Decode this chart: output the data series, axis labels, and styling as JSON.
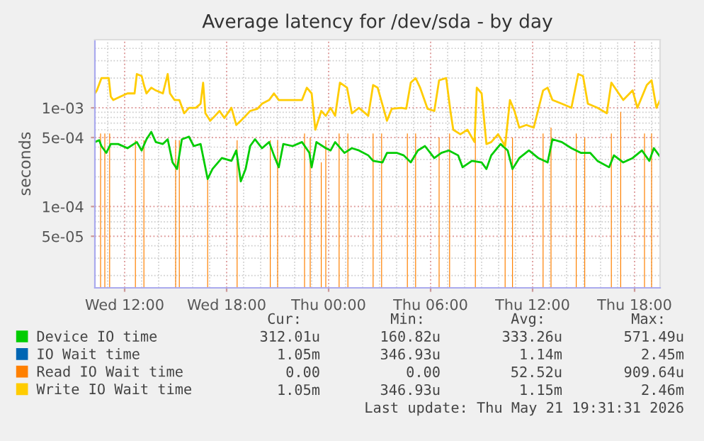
{
  "chart_data": {
    "type": "line",
    "title": "Average latency for /dev/sda - by day",
    "ylabel": "seconds",
    "xlim": [
      "2026-05-20T10:15",
      "2026-05-21T19:30"
    ],
    "xticks": [
      {
        "value": "2026-05-20T12:00",
        "label": "Wed 12:00"
      },
      {
        "value": "2026-05-20T18:00",
        "label": "Wed 18:00"
      },
      {
        "value": "2026-05-21T00:00",
        "label": "Thu 00:00"
      },
      {
        "value": "2026-05-21T06:00",
        "label": "Thu 06:00"
      },
      {
        "value": "2026-05-21T12:00",
        "label": "Thu 12:00"
      },
      {
        "value": "2026-05-21T18:00",
        "label": "Thu 18:00"
      }
    ],
    "ylim": [
      1.5e-05,
      0.0049
    ],
    "yticks": [
      {
        "value": 5e-05,
        "label": "5e-05"
      },
      {
        "value": 0.0001,
        "label": "1e-04"
      },
      {
        "value": 0.0005,
        "label": "5e-04"
      },
      {
        "value": 0.001,
        "label": "1e-03"
      }
    ],
    "log": "y",
    "grid": true,
    "legend": "bottom",
    "marker": "none",
    "line_style": "solid",
    "series": [
      {
        "name": "Device IO time",
        "color": "#00cc00",
        "x": [
          "2026-05-20T10:15",
          "2026-05-20T10:30",
          "2026-05-20T10:38",
          "2026-05-20T10:55",
          "2026-05-20T11:11",
          "2026-05-20T11:37",
          "2026-05-20T12:10",
          "2026-05-20T12:43",
          "2026-05-20T13:00",
          "2026-05-20T13:17",
          "2026-05-20T13:34",
          "2026-05-20T13:50",
          "2026-05-20T14:15",
          "2026-05-20T14:32",
          "2026-05-20T14:49",
          "2026-05-20T15:05",
          "2026-05-20T15:22",
          "2026-05-20T15:47",
          "2026-05-20T16:04",
          "2026-05-20T16:28",
          "2026-05-20T16:53",
          "2026-05-20T17:10",
          "2026-05-20T17:43",
          "2026-05-20T18:17",
          "2026-05-20T18:34",
          "2026-05-20T18:50",
          "2026-05-20T19:07",
          "2026-05-20T19:23",
          "2026-05-20T19:40",
          "2026-05-20T20:05",
          "2026-05-20T20:30",
          "2026-05-20T20:47",
          "2026-05-20T21:04",
          "2026-05-20T21:20",
          "2026-05-20T21:53",
          "2026-05-20T22:26",
          "2026-05-20T22:52",
          "2026-05-20T23:00",
          "2026-05-20T23:17",
          "2026-05-20T23:50",
          "2026-05-21T00:07",
          "2026-05-21T00:23",
          "2026-05-21T00:56",
          "2026-05-21T01:22",
          "2026-05-21T01:47",
          "2026-05-21T02:20",
          "2026-05-21T02:37",
          "2026-05-21T03:10",
          "2026-05-21T03:26",
          "2026-05-21T04:00",
          "2026-05-21T04:25",
          "2026-05-21T04:50",
          "2026-05-21T05:15",
          "2026-05-21T05:40",
          "2026-05-21T06:13",
          "2026-05-21T06:38",
          "2026-05-21T07:04",
          "2026-05-21T07:37",
          "2026-05-21T07:53",
          "2026-05-21T08:26",
          "2026-05-21T09:00",
          "2026-05-21T09:17",
          "2026-05-21T09:34",
          "2026-05-21T10:07",
          "2026-05-21T10:32",
          "2026-05-21T10:49",
          "2026-05-21T11:13",
          "2026-05-21T11:47",
          "2026-05-21T12:20",
          "2026-05-21T12:53",
          "2026-05-21T13:10",
          "2026-05-21T13:43",
          "2026-05-21T14:17",
          "2026-05-21T14:50",
          "2026-05-21T15:23",
          "2026-05-21T15:49",
          "2026-05-21T16:30",
          "2026-05-21T16:47",
          "2026-05-21T17:20",
          "2026-05-21T17:53",
          "2026-05-21T18:26",
          "2026-05-21T18:52",
          "2026-05-21T19:08",
          "2026-05-21T19:30"
        ],
        "values": [
          0.00045,
          0.00047,
          0.00041,
          0.00035,
          0.00043,
          0.00043,
          0.00039,
          0.00045,
          0.00037,
          0.00048,
          0.00057,
          0.00045,
          0.00043,
          0.00048,
          0.00028,
          0.00024,
          0.00048,
          0.00051,
          0.00041,
          0.00043,
          0.00019,
          0.00024,
          0.00031,
          0.00029,
          0.00037,
          0.00018,
          0.00024,
          0.00041,
          0.00048,
          0.00039,
          0.00045,
          0.00033,
          0.00025,
          0.00043,
          0.00041,
          0.00045,
          0.00035,
          0.00025,
          0.00045,
          0.00039,
          0.00037,
          0.00045,
          0.00035,
          0.00039,
          0.00037,
          0.00033,
          0.00029,
          0.00028,
          0.00035,
          0.00035,
          0.00033,
          0.00028,
          0.00037,
          0.00041,
          0.00031,
          0.00035,
          0.00037,
          0.00033,
          0.00025,
          0.00029,
          0.00028,
          0.00024,
          0.00033,
          0.00043,
          0.00037,
          0.00024,
          0.00031,
          0.00037,
          0.00031,
          0.00028,
          0.00048,
          0.00045,
          0.00039,
          0.00035,
          0.00035,
          0.00029,
          0.00025,
          0.00033,
          0.00028,
          0.00031,
          0.00037,
          0.00029,
          0.00039,
          0.00032
        ]
      },
      {
        "name": "IO Wait time",
        "color": "#0066b3"
      },
      {
        "name": "Read IO Wait time",
        "color": "#ff8000",
        "type": "bar",
        "x": [
          "2026-05-20T10:35",
          "2026-05-20T10:50",
          "2026-05-20T11:07",
          "2026-05-20T12:38",
          "2026-05-20T13:08",
          "2026-05-20T15:00",
          "2026-05-20T15:13",
          "2026-05-20T16:53",
          "2026-05-20T18:37",
          "2026-05-20T20:34",
          "2026-05-20T21:00",
          "2026-05-20T22:35",
          "2026-05-20T22:55",
          "2026-05-20T23:34",
          "2026-05-20T23:50",
          "2026-05-21T00:37",
          "2026-05-21T01:08",
          "2026-05-21T02:37",
          "2026-05-21T03:07",
          "2026-05-21T04:38",
          "2026-05-21T05:07",
          "2026-05-21T06:30",
          "2026-05-21T07:07",
          "2026-05-21T08:38",
          "2026-05-21T10:23",
          "2026-05-21T10:49",
          "2026-05-21T12:37",
          "2026-05-21T13:05",
          "2026-05-21T14:34",
          "2026-05-21T15:04",
          "2026-05-21T16:38",
          "2026-05-21T17:11",
          "2026-05-21T18:35",
          "2026-05-21T19:00"
        ],
        "values": [
          0.00055,
          0.00055,
          0.00055,
          0.00047,
          0.00047,
          0.00047,
          0.00047,
          0.0002,
          0.00047,
          0.00047,
          0.00047,
          0.00055,
          0.0005,
          0.00028,
          0.00047,
          0.00055,
          0.00055,
          0.00055,
          0.00055,
          0.00055,
          0.00055,
          0.0005,
          0.00055,
          0.0005,
          0.00047,
          0.0005,
          0.00055,
          0.00063,
          0.00055,
          0.0005,
          0.00055,
          0.00091,
          0.00055,
          0.00055
        ]
      },
      {
        "name": "Write IO Wait time",
        "color": "#ffcc00",
        "x": [
          "2026-05-20T10:15",
          "2026-05-20T10:22",
          "2026-05-20T10:38",
          "2026-05-20T11:04",
          "2026-05-20T11:11",
          "2026-05-20T11:20",
          "2026-05-20T11:45",
          "2026-05-20T12:10",
          "2026-05-20T12:35",
          "2026-05-20T12:43",
          "2026-05-20T13:00",
          "2026-05-20T13:08",
          "2026-05-20T13:17",
          "2026-05-20T13:34",
          "2026-05-20T13:50",
          "2026-05-20T14:15",
          "2026-05-20T14:32",
          "2026-05-20T14:40",
          "2026-05-20T14:56",
          "2026-05-20T15:13",
          "2026-05-20T15:30",
          "2026-05-20T15:47",
          "2026-05-20T16:11",
          "2026-05-20T16:28",
          "2026-05-20T16:37",
          "2026-05-20T16:45",
          "2026-05-20T17:02",
          "2026-05-20T17:19",
          "2026-05-20T17:35",
          "2026-05-20T17:52",
          "2026-05-20T18:17",
          "2026-05-20T18:34",
          "2026-05-20T18:50",
          "2026-05-20T19:07",
          "2026-05-20T19:23",
          "2026-05-20T19:49",
          "2026-05-20T20:05",
          "2026-05-20T20:30",
          "2026-05-20T20:47",
          "2026-05-20T21:04",
          "2026-05-20T21:20",
          "2026-05-20T21:53",
          "2026-05-20T22:26",
          "2026-05-20T22:43",
          "2026-05-20T23:00",
          "2026-05-20T23:13",
          "2026-05-20T23:34",
          "2026-05-20T23:50",
          "2026-05-21T00:07",
          "2026-05-21T00:23",
          "2026-05-21T00:40",
          "2026-05-21T01:05",
          "2026-05-21T01:22",
          "2026-05-21T01:47",
          "2026-05-21T02:20",
          "2026-05-21T02:37",
          "2026-05-21T02:53",
          "2026-05-21T03:26",
          "2026-05-21T03:43",
          "2026-05-21T04:17",
          "2026-05-21T04:34",
          "2026-05-21T04:50",
          "2026-05-21T05:07",
          "2026-05-21T05:23",
          "2026-05-21T05:49",
          "2026-05-21T06:13",
          "2026-05-21T06:30",
          "2026-05-21T06:55",
          "2026-05-21T07:11",
          "2026-05-21T07:20",
          "2026-05-21T07:45",
          "2026-05-21T08:10",
          "2026-05-21T08:35",
          "2026-05-21T08:43",
          "2026-05-21T09:00",
          "2026-05-21T09:17",
          "2026-05-21T09:34",
          "2026-05-21T09:58",
          "2026-05-21T10:23",
          "2026-05-21T10:40",
          "2026-05-21T10:56",
          "2026-05-21T11:13",
          "2026-05-21T11:38",
          "2026-05-21T12:04",
          "2026-05-21T12:37",
          "2026-05-21T12:53",
          "2026-05-21T13:10",
          "2026-05-21T13:43",
          "2026-05-21T14:17",
          "2026-05-21T14:41",
          "2026-05-21T14:58",
          "2026-05-21T15:15",
          "2026-05-21T15:49",
          "2026-05-21T16:22",
          "2026-05-21T16:38",
          "2026-05-21T17:04",
          "2026-05-21T17:20",
          "2026-05-21T17:53",
          "2026-05-21T18:10",
          "2026-05-21T18:43",
          "2026-05-21T19:00",
          "2026-05-21T19:17",
          "2026-05-21T19:30"
        ],
        "values": [
          0.0014,
          0.0015,
          0.002,
          0.002,
          0.0013,
          0.0012,
          0.0013,
          0.0014,
          0.0014,
          0.0022,
          0.0021,
          0.0017,
          0.0014,
          0.0016,
          0.0015,
          0.0014,
          0.0022,
          0.0014,
          0.0012,
          0.0012,
          0.00088,
          0.001,
          0.001,
          0.0011,
          0.0018,
          0.00088,
          0.00074,
          0.00083,
          0.00093,
          0.00079,
          0.001,
          0.00067,
          0.00074,
          0.00083,
          0.00093,
          0.00098,
          0.0011,
          0.0012,
          0.0014,
          0.0012,
          0.0012,
          0.0012,
          0.0012,
          0.0016,
          0.0014,
          0.0006,
          0.00093,
          0.00083,
          0.001,
          0.00083,
          0.0018,
          0.0016,
          0.00088,
          0.001,
          0.00083,
          0.0017,
          0.0016,
          0.00074,
          0.00098,
          0.001,
          0.00098,
          0.0018,
          0.002,
          0.0016,
          0.00098,
          0.00093,
          0.0019,
          0.002,
          0.00088,
          0.0006,
          0.00054,
          0.0006,
          0.00045,
          0.0016,
          0.0014,
          0.00043,
          0.00045,
          0.00054,
          0.00041,
          0.0012,
          0.00093,
          0.00063,
          0.00067,
          0.00063,
          0.0015,
          0.0016,
          0.0012,
          0.0011,
          0.001,
          0.0022,
          0.0021,
          0.0011,
          0.001,
          0.00088,
          0.0018,
          0.0014,
          0.0012,
          0.0015,
          0.001,
          0.0017,
          0.0019,
          0.001,
          0.0012
        ]
      }
    ],
    "annotations": [
      "Cur:",
      "Min:",
      "Avg:",
      "Max:",
      "312.01u",
      "160.82u",
      "333.26u",
      "571.49u",
      "1.05m",
      "346.93u",
      "1.14m",
      "2.45m",
      "0.00",
      "0.00",
      "52.52u",
      "909.64u",
      "1.05m",
      "346.93u",
      "1.15m",
      "2.46m",
      "Last update: Thu May 21 19:31:31 2026"
    ]
  }
}
